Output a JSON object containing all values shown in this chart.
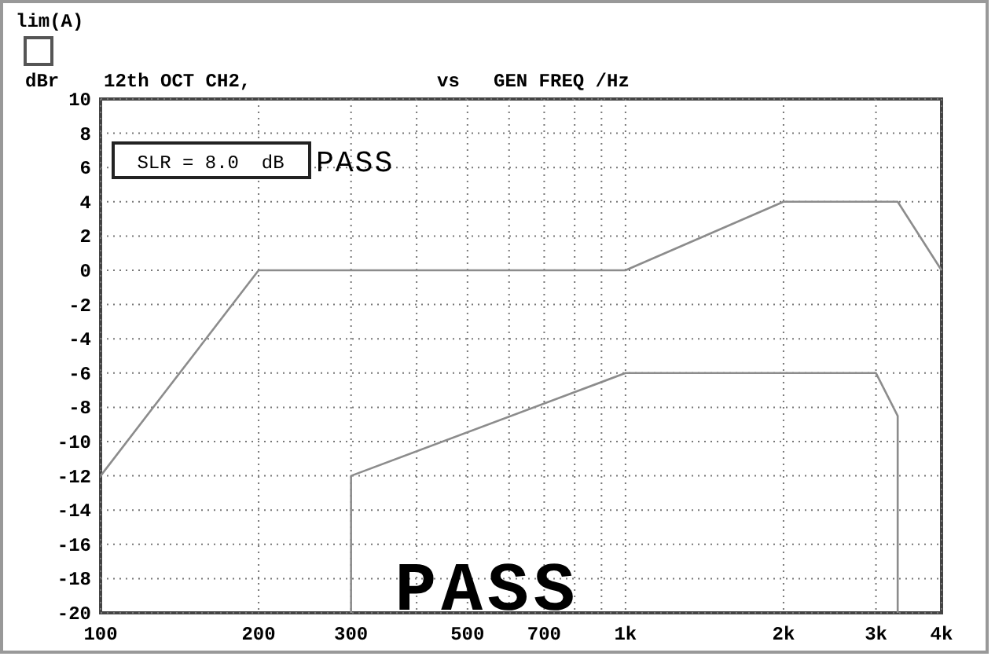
{
  "chart_data": {
    "type": "line",
    "title": "12th OCT CH2,",
    "xlabel": "GEN FREQ /Hz",
    "ylabel": "dBr",
    "annotations": [
      "lim(A)",
      "vs",
      "SLR = 8.0  dB",
      "PASS",
      "PASS"
    ],
    "log": "x",
    "grid": true,
    "line_style": "solid",
    "xlim": [
      100,
      4000
    ],
    "xticks": [
      100,
      200,
      300,
      {
        "value": 400,
        "label": null
      },
      500,
      {
        "value": 600,
        "label": null
      },
      700,
      {
        "value": 800,
        "label": null
      },
      {
        "value": 900,
        "label": null
      },
      {
        "value": 1000,
        "label": "1k"
      },
      {
        "value": 2000,
        "label": "2k"
      },
      {
        "value": 3000,
        "label": "3k"
      },
      {
        "value": 4000,
        "label": "4k"
      }
    ],
    "ylim": [
      -20,
      10
    ],
    "yticks": [
      -20,
      -18,
      -16,
      -14,
      -12,
      -10,
      -8,
      -6,
      -4,
      -2,
      0,
      2,
      4,
      6,
      8,
      10
    ],
    "series": [
      {
        "color": "#8c8c8c",
        "x": [
          100,
          200,
          1000,
          2000,
          3300,
          4000
        ],
        "values": [
          -12,
          0,
          0,
          4,
          4,
          0
        ]
      },
      {
        "color": "#8c8c8c",
        "x": [
          300,
          300,
          1000,
          3000,
          3300,
          3300
        ],
        "values": [
          -20,
          -12,
          -6,
          -6,
          -8.5,
          -20
        ]
      }
    ]
  }
}
